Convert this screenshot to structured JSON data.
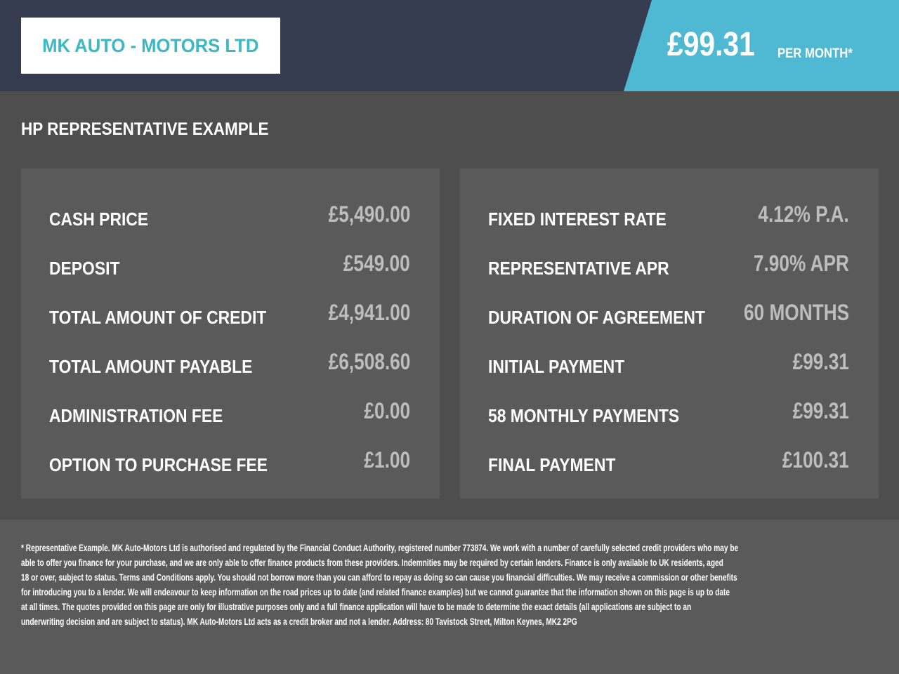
{
  "header": {
    "logo_text": "MK AUTO - MOTORS LTD",
    "monthly_price": "£99.31",
    "per_month_label": "PER MONTH*",
    "colors": {
      "header_bg": "#363c50",
      "accent": "#4fb9d3",
      "logo_text": "#3bb8c4"
    }
  },
  "title": "HP REPRESENTATIVE EXAMPLE",
  "left_panel": [
    {
      "label": "CASH PRICE",
      "value": "£5,490.00"
    },
    {
      "label": "DEPOSIT",
      "value": "£549.00"
    },
    {
      "label": "TOTAL AMOUNT OF CREDIT",
      "value": "£4,941.00"
    },
    {
      "label": "TOTAL AMOUNT PAYABLE",
      "value": "£6,508.60"
    },
    {
      "label": "ADMINISTRATION FEE",
      "value": "£0.00"
    },
    {
      "label": "OPTION TO PURCHASE FEE",
      "value": "£1.00"
    }
  ],
  "right_panel": [
    {
      "label": "FIXED INTEREST RATE",
      "value": "4.12% P.A."
    },
    {
      "label": "REPRESENTATIVE APR",
      "value": "7.90% APR"
    },
    {
      "label": "DURATION OF AGREEMENT",
      "value": "60 MONTHS"
    },
    {
      "label": "INITIAL PAYMENT",
      "value": "£99.31"
    },
    {
      "label": "58 MONTHLY PAYMENTS",
      "value": "£99.31"
    },
    {
      "label": "FINAL PAYMENT",
      "value": "£100.31"
    }
  ],
  "disclaimer_lines": [
    "* Representative Example. MK Auto-Motors Ltd is authorised and regulated by the Financial Conduct Authority, registered number 773874. We work with a number of carefully selected credit providers who may be",
    "able to offer you finance for your purchase, and we are only able to offer finance products from these providers. Indemnities may be required by certain lenders. Finance is only available to UK residents, aged",
    "18 or over, subject to status. Terms and Conditions apply. You should not borrow more than you can afford to repay as doing so can cause you financial difficulties. We may receive a commission or other benefits",
    "for introducing you to a lender. We will endeavour to keep information on the road prices up to date (and related finance examples) but we cannot guarantee that the information shown on this page is up to date",
    "at all times. The quotes provided on this page are only for illustrative purposes only and a full finance application will have to be made to determine the exact details (all applications are subject to an",
    "underwriting decision and are subject to status). MK Auto-Motors Ltd acts as a credit broker and not a lender. Address: 80 Tavistock Street, Milton Keynes, MK2 2PG"
  ]
}
